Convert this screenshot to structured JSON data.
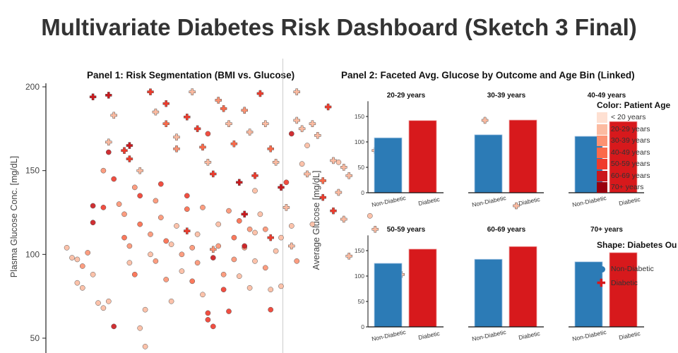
{
  "title": "Multivariate Diabetes Risk Dashboard (Sketch 3 Final)",
  "colors": {
    "age": [
      "#fee0d2",
      "#fcbba1",
      "#fc9272",
      "#fb6a4a",
      "#ef3b2c",
      "#cb181d",
      "#99000d"
    ],
    "non_diabetic": "#2c7bb6",
    "diabetic": "#d7191c"
  },
  "legend": {
    "color_title": "Color: Patient Age",
    "age_labels": [
      "< 20 years",
      "20-29 years",
      "30-39 years",
      "40-49 years",
      "50-59 years",
      "60-69 years",
      "70+ years"
    ],
    "shape_title": "Shape: Diabetes Ou",
    "shape_items": [
      {
        "label": "Non-Diabetic",
        "shape": "circle"
      },
      {
        "label": "Diabetic",
        "shape": "cross"
      }
    ]
  },
  "chart_data": [
    {
      "type": "scatter",
      "title": "Panel 1: Risk Segmentation (BMI vs. Glucose)",
      "xlabel": "",
      "ylabel": "Plasma Glucose Conc. [mg/dL]",
      "ylim": [
        45,
        202
      ],
      "yticks": [
        50,
        100,
        150,
        200
      ],
      "point_fields": [
        "bmi",
        "glucose",
        "age_group",
        "outcome"
      ],
      "points": [
        [
          19,
          104,
          1,
          0
        ],
        [
          20,
          98,
          1,
          0
        ],
        [
          21,
          83,
          1,
          0
        ],
        [
          22,
          80,
          1,
          0
        ],
        [
          21,
          97,
          1,
          0
        ],
        [
          23,
          101,
          2,
          0
        ],
        [
          22,
          93,
          2,
          0
        ],
        [
          24,
          88,
          1,
          0
        ],
        [
          25,
          71,
          1,
          0
        ],
        [
          26,
          68,
          1,
          0
        ],
        [
          24,
          129,
          5,
          0
        ],
        [
          24,
          119,
          5,
          0
        ],
        [
          26,
          128,
          4,
          0
        ],
        [
          27,
          72,
          1,
          0
        ],
        [
          28,
          57,
          5,
          0
        ],
        [
          26,
          150,
          2,
          0
        ],
        [
          27,
          161,
          5,
          0
        ],
        [
          28,
          145,
          4,
          0
        ],
        [
          29,
          130,
          2,
          0
        ],
        [
          30,
          124,
          2,
          0
        ],
        [
          30,
          110,
          3,
          0
        ],
        [
          31,
          105,
          2,
          0
        ],
        [
          31,
          95,
          1,
          0
        ],
        [
          32,
          88,
          3,
          0
        ],
        [
          32,
          140,
          2,
          0
        ],
        [
          33,
          135,
          4,
          0
        ],
        [
          33,
          118,
          3,
          0
        ],
        [
          34,
          67,
          1,
          0
        ],
        [
          34,
          45,
          1,
          0
        ],
        [
          33,
          56,
          1,
          0
        ],
        [
          35,
          112,
          2,
          0
        ],
        [
          35,
          100,
          1,
          0
        ],
        [
          36,
          96,
          2,
          0
        ],
        [
          36,
          132,
          2,
          0
        ],
        [
          37,
          142,
          4,
          0
        ],
        [
          37,
          122,
          2,
          0
        ],
        [
          38,
          108,
          3,
          0
        ],
        [
          38,
          85,
          2,
          0
        ],
        [
          39,
          72,
          1,
          0
        ],
        [
          39,
          106,
          1,
          0
        ],
        [
          40,
          117,
          1,
          0
        ],
        [
          41,
          100,
          2,
          0
        ],
        [
          41,
          90,
          1,
          0
        ],
        [
          42,
          127,
          3,
          0
        ],
        [
          42,
          135,
          4,
          0
        ],
        [
          43,
          104,
          2,
          0
        ],
        [
          43,
          84,
          3,
          0
        ],
        [
          44,
          95,
          2,
          0
        ],
        [
          44,
          112,
          1,
          0
        ],
        [
          45,
          128,
          2,
          0
        ],
        [
          45,
          76,
          1,
          0
        ],
        [
          46,
          65,
          4,
          0
        ],
        [
          46,
          61,
          4,
          0
        ],
        [
          47,
          57,
          4,
          0
        ],
        [
          47,
          98,
          5,
          0
        ],
        [
          48,
          118,
          1,
          0
        ],
        [
          48,
          105,
          2,
          0
        ],
        [
          49,
          88,
          2,
          0
        ],
        [
          49,
          79,
          4,
          0
        ],
        [
          50,
          66,
          4,
          0
        ],
        [
          50,
          126,
          2,
          0
        ],
        [
          51,
          110,
          3,
          0
        ],
        [
          51,
          97,
          2,
          0
        ],
        [
          52,
          87,
          1,
          0
        ],
        [
          52,
          120,
          3,
          0
        ],
        [
          53,
          104,
          2,
          0
        ],
        [
          54,
          115,
          2,
          0
        ],
        [
          54,
          80,
          1,
          0
        ],
        [
          55,
          96,
          1,
          0
        ],
        [
          55,
          138,
          1,
          0
        ],
        [
          56,
          124,
          1,
          0
        ],
        [
          57,
          92,
          2,
          0
        ],
        [
          57,
          115,
          2,
          0
        ],
        [
          58,
          79,
          1,
          0
        ],
        [
          59,
          102,
          1,
          0
        ],
        [
          60,
          81,
          1,
          0
        ],
        [
          60,
          110,
          1,
          0
        ],
        [
          61,
          143,
          4,
          0
        ],
        [
          62,
          117,
          1,
          0
        ],
        [
          63,
          96,
          2,
          0
        ],
        [
          64,
          154,
          1,
          0
        ],
        [
          65,
          165,
          1,
          0
        ],
        [
          71,
          155,
          1,
          0
        ],
        [
          77,
          123,
          1,
          0
        ],
        [
          46,
          172,
          4,
          0
        ],
        [
          53,
          105,
          5,
          0
        ],
        [
          55,
          113,
          1,
          0
        ],
        [
          58,
          67,
          4,
          0
        ],
        [
          62,
          172,
          5,
          0
        ],
        [
          66,
          118,
          1,
          0
        ],
        [
          24,
          194,
          5,
          1
        ],
        [
          27,
          195,
          5,
          1
        ],
        [
          28,
          183,
          1,
          1
        ],
        [
          27,
          167,
          1,
          1
        ],
        [
          30,
          162,
          4,
          1
        ],
        [
          31,
          157,
          4,
          1
        ],
        [
          31,
          165,
          5,
          1
        ],
        [
          33,
          150,
          1,
          1
        ],
        [
          35,
          197,
          4,
          1
        ],
        [
          36,
          185,
          1,
          1
        ],
        [
          38,
          190,
          4,
          1
        ],
        [
          38,
          178,
          3,
          1
        ],
        [
          40,
          170,
          1,
          1
        ],
        [
          40,
          163,
          2,
          1
        ],
        [
          42,
          182,
          4,
          1
        ],
        [
          43,
          197,
          1,
          1
        ],
        [
          44,
          175,
          4,
          1
        ],
        [
          45,
          164,
          3,
          1
        ],
        [
          46,
          155,
          1,
          1
        ],
        [
          47,
          148,
          4,
          1
        ],
        [
          48,
          192,
          2,
          1
        ],
        [
          49,
          187,
          3,
          1
        ],
        [
          50,
          178,
          1,
          1
        ],
        [
          51,
          166,
          3,
          1
        ],
        [
          52,
          143,
          5,
          1
        ],
        [
          53,
          186,
          2,
          1
        ],
        [
          54,
          173,
          1,
          1
        ],
        [
          55,
          147,
          4,
          1
        ],
        [
          56,
          196,
          4,
          1
        ],
        [
          57,
          178,
          1,
          1
        ],
        [
          58,
          163,
          3,
          1
        ],
        [
          59,
          155,
          1,
          1
        ],
        [
          60,
          140,
          5,
          1
        ],
        [
          61,
          128,
          1,
          1
        ],
        [
          63,
          197,
          1,
          1
        ],
        [
          63,
          180,
          1,
          1
        ],
        [
          64,
          175,
          1,
          1
        ],
        [
          65,
          148,
          1,
          1
        ],
        [
          66,
          178,
          1,
          1
        ],
        [
          67,
          171,
          1,
          1
        ],
        [
          68,
          144,
          3,
          1
        ],
        [
          68,
          134,
          4,
          1
        ],
        [
          69,
          188,
          4,
          1
        ],
        [
          70,
          156,
          1,
          1
        ],
        [
          71,
          137,
          1,
          1
        ],
        [
          72,
          121,
          1,
          1
        ],
        [
          73,
          147,
          1,
          1
        ],
        [
          78,
          162,
          1,
          1
        ],
        [
          78,
          115,
          1,
          1
        ],
        [
          73,
          99,
          1,
          1
        ],
        [
          72,
          152,
          1,
          1
        ],
        [
          70,
          126,
          4,
          1
        ],
        [
          62,
          105,
          1,
          1
        ],
        [
          47,
          103,
          2,
          1
        ],
        [
          53,
          124,
          5,
          1
        ],
        [
          58,
          110,
          4,
          1
        ],
        [
          42,
          114,
          4,
          1
        ],
        [
          83,
          88,
          1,
          1
        ],
        [
          99,
          180,
          1,
          1
        ],
        [
          105,
          129,
          1,
          1
        ]
      ]
    },
    {
      "type": "bar",
      "title": "Panel 2: Faceted Avg. Glucose by Outcome and Age Bin (Linked)",
      "ylabel": "Average Glucose [mg/dL]",
      "ylim": [
        0,
        180
      ],
      "yticks": [
        0,
        50,
        100,
        150
      ],
      "categories": [
        "Non-Diabetic",
        "Diabetic"
      ],
      "facets": [
        {
          "label": "20-29 years",
          "values": [
            108,
            142
          ]
        },
        {
          "label": "30-39 years",
          "values": [
            114,
            143
          ]
        },
        {
          "label": "40-49 years",
          "values": [
            111,
            140
          ]
        },
        {
          "label": "50-59 years",
          "values": [
            125,
            153
          ]
        },
        {
          "label": "60-69 years",
          "values": [
            133,
            158
          ]
        },
        {
          "label": "70+ years",
          "values": [
            128,
            146
          ]
        }
      ]
    }
  ]
}
